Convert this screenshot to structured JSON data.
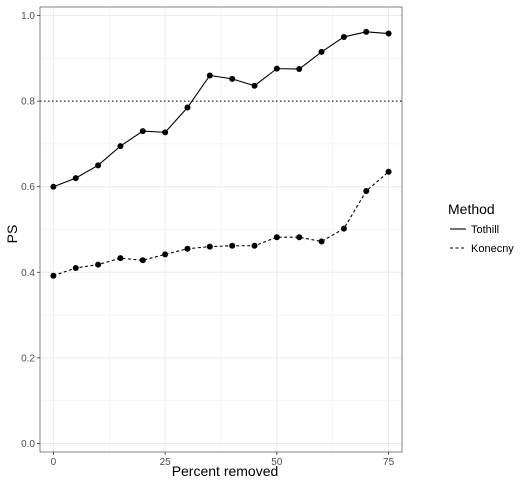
{
  "chart_data": {
    "type": "line",
    "xlabel": "Percent removed",
    "ylabel": "PS",
    "xlim": [
      -3,
      78
    ],
    "ylim": [
      -0.02,
      1.02
    ],
    "xticks": [
      0,
      25,
      50,
      75
    ],
    "yticks": [
      0.0,
      0.2,
      0.4,
      0.6,
      0.8,
      1.0
    ],
    "xtick_labels": [
      "0",
      "25",
      "50",
      "75"
    ],
    "ytick_labels": [
      "0.0",
      "0.2",
      "0.4",
      "0.6",
      "0.8",
      "1.0"
    ],
    "grid": true,
    "legend_position": "right",
    "legend_title": "Method",
    "x": [
      0,
      5,
      10,
      15,
      20,
      25,
      30,
      35,
      40,
      45,
      50,
      55,
      60,
      65,
      70,
      75
    ],
    "series": [
      {
        "name": "Tothill",
        "line_style": "solid",
        "values": [
          0.6,
          0.62,
          0.65,
          0.695,
          0.73,
          0.727,
          0.785,
          0.86,
          0.852,
          0.836,
          0.876,
          0.875,
          0.915,
          0.95,
          0.962,
          0.958
        ]
      },
      {
        "name": "Konecny",
        "line_style": "dashed",
        "values": [
          0.392,
          0.41,
          0.418,
          0.433,
          0.428,
          0.442,
          0.455,
          0.46,
          0.462,
          0.462,
          0.482,
          0.482,
          0.472,
          0.502,
          0.59,
          0.635
        ]
      }
    ],
    "reference_line": {
      "y": 0.8,
      "style": "dotted"
    },
    "colors": {
      "line": "#000000",
      "grid": "#ebebeb",
      "panel_border": "#333333",
      "tick_text": "#4d4d4d"
    }
  }
}
